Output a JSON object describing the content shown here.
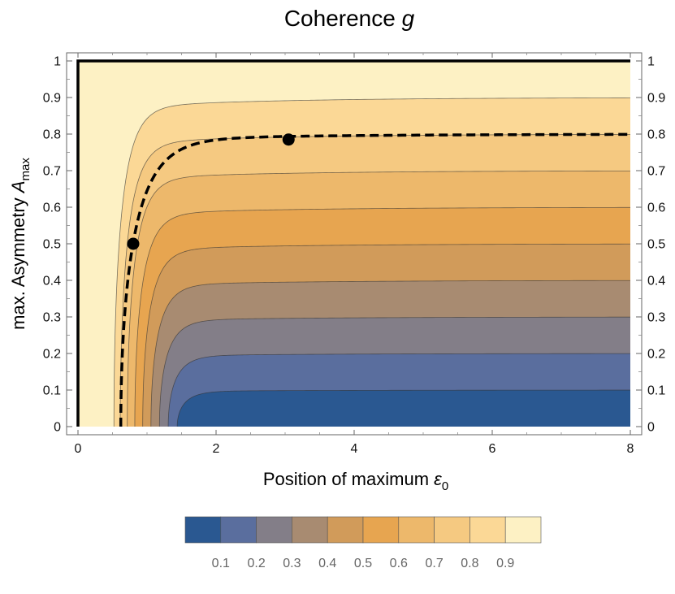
{
  "chart_data": {
    "type": "contour",
    "title": "Coherence g",
    "xlabel": "Position of maximum ε0",
    "ylabel": "max. Asymmetry Amax",
    "xlim": [
      0,
      8
    ],
    "ylim": [
      0,
      1
    ],
    "x_ticks": [
      0,
      2,
      4,
      6,
      8
    ],
    "y_ticks": [
      0,
      0.1,
      0.2,
      0.3,
      0.4,
      0.5,
      0.6,
      0.7,
      0.8,
      0.9,
      1
    ],
    "y_tick_labels": [
      "0",
      "0.1",
      "0.2",
      "0.3",
      "0.4",
      "0.5",
      "0.6",
      "0.7",
      "0.8",
      "0.9",
      "1"
    ],
    "contour_levels": [
      0.1,
      0.2,
      0.3,
      0.4,
      0.5,
      0.6,
      0.7,
      0.8,
      0.9
    ],
    "colorbar": {
      "labels": [
        "0.1",
        "0.2",
        "0.3",
        "0.4",
        "0.5",
        "0.6",
        "0.7",
        "0.8",
        "0.9"
      ],
      "colors": [
        "#2a5891",
        "#5a6e9e",
        "#837e88",
        "#a88b71",
        "#d19b5a",
        "#e7a550",
        "#edb86b",
        "#f5c981",
        "#fbd896",
        "#fdf1c4"
      ]
    },
    "boundary_lines": [
      {
        "style": "solid",
        "points": [
          [
            0,
            0
          ],
          [
            0,
            1
          ],
          [
            8,
            1
          ]
        ]
      }
    ],
    "dashed_curve": {
      "style": "dashed",
      "asymptote": 0.8,
      "x_at_zero": 0.62
    },
    "markers": [
      {
        "x": 0.8,
        "y": 0.5
      },
      {
        "x": 3.05,
        "y": 0.785
      }
    ]
  }
}
